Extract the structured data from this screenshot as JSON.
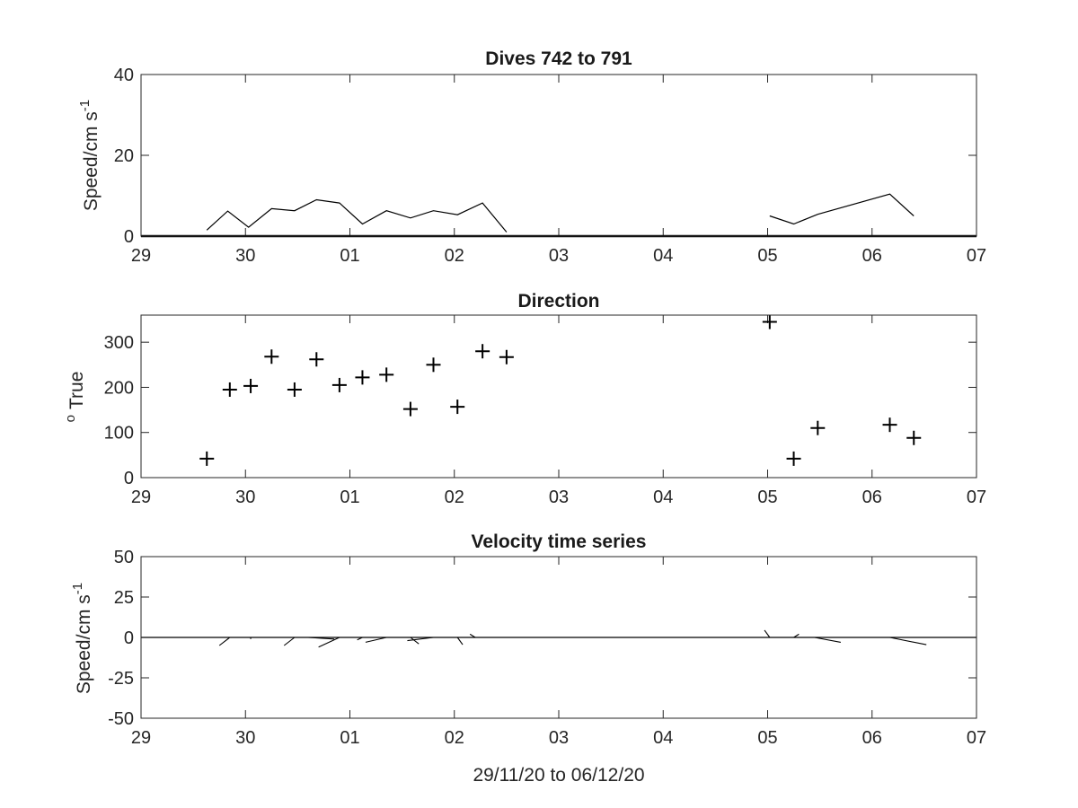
{
  "chart_data": [
    {
      "type": "line",
      "title": "Dives 742 to 791",
      "ylabel": "Speed/cm s",
      "ylabel_exponent": "-1",
      "xlim": [
        "29/11/20",
        "07/12/20"
      ],
      "ylim": [
        0,
        40
      ],
      "x_tick_labels": [
        "29",
        "30",
        "01",
        "02",
        "03",
        "04",
        "05",
        "06",
        "07"
      ],
      "y_ticks": [
        0,
        20,
        40
      ],
      "series": [
        {
          "x": [
            29.63,
            29.83,
            30.03,
            30.25,
            30.47,
            30.68,
            30.9,
            31.12,
            31.35,
            31.58,
            31.8,
            32.03,
            32.27,
            32.5
          ],
          "y": [
            1.5,
            6.2,
            2.2,
            6.8,
            6.3,
            9.0,
            8.2,
            3.0,
            6.3,
            4.5,
            6.3,
            5.3,
            8.2,
            1.0
          ]
        },
        {
          "x": [
            35.02,
            35.25,
            35.48,
            36.17,
            36.4
          ],
          "y": [
            5.0,
            3.0,
            5.4,
            10.4,
            5.0
          ]
        }
      ],
      "baseline": 0
    },
    {
      "type": "scatter",
      "title": "Direction",
      "ylabel": "True",
      "ylabel_prefix": "o",
      "xlim": [
        "29/11/20",
        "07/12/20"
      ],
      "ylim": [
        0,
        360
      ],
      "x_tick_labels": [
        "29",
        "30",
        "01",
        "02",
        "03",
        "04",
        "05",
        "06",
        "07"
      ],
      "y_ticks": [
        0,
        100,
        200,
        300
      ],
      "x": [
        29.63,
        29.85,
        30.05,
        30.25,
        30.47,
        30.68,
        30.9,
        31.12,
        31.35,
        31.58,
        31.8,
        32.03,
        32.27,
        32.5,
        35.02,
        35.25,
        35.48,
        36.17,
        36.4
      ],
      "y": [
        42,
        195,
        203,
        268,
        195,
        262,
        205,
        222,
        228,
        152,
        250,
        157,
        280,
        267,
        345,
        42,
        110,
        117,
        88
      ]
    },
    {
      "type": "line",
      "title": "Velocity time series",
      "ylabel": "Speed/cm s",
      "ylabel_exponent": "-1",
      "xlabel": "29/11/20 to 06/12/20",
      "xlim": [
        "29/11/20",
        "07/12/20"
      ],
      "ylim": [
        -50,
        50
      ],
      "x_tick_labels": [
        "29",
        "30",
        "01",
        "02",
        "03",
        "04",
        "05",
        "06",
        "07"
      ],
      "y_ticks": [
        -50,
        -25,
        0,
        25,
        50
      ],
      "stick_vectors": [
        {
          "x": 29.85,
          "u": -0.1,
          "v": -5
        },
        {
          "x": 30.05,
          "u": 0.0,
          "v": -1
        },
        {
          "x": 30.47,
          "u": -0.1,
          "v": -5
        },
        {
          "x": 30.6,
          "u": 0.25,
          "v": -1
        },
        {
          "x": 30.9,
          "u": -0.2,
          "v": -6
        },
        {
          "x": 31.12,
          "u": -0.05,
          "v": -1.5
        },
        {
          "x": 31.35,
          "u": -0.2,
          "v": -3
        },
        {
          "x": 31.58,
          "u": 0.08,
          "v": -4
        },
        {
          "x": 31.8,
          "u": -0.25,
          "v": -2
        },
        {
          "x": 32.03,
          "u": 0.05,
          "v": -4.5
        },
        {
          "x": 32.2,
          "u": -0.05,
          "v": 2
        },
        {
          "x": 35.02,
          "u": -0.05,
          "v": 4.5
        },
        {
          "x": 35.25,
          "u": 0.05,
          "v": 2
        },
        {
          "x": 35.45,
          "u": 0.25,
          "v": -3
        },
        {
          "x": 36.17,
          "u": 0.35,
          "v": -4.5
        }
      ]
    }
  ]
}
